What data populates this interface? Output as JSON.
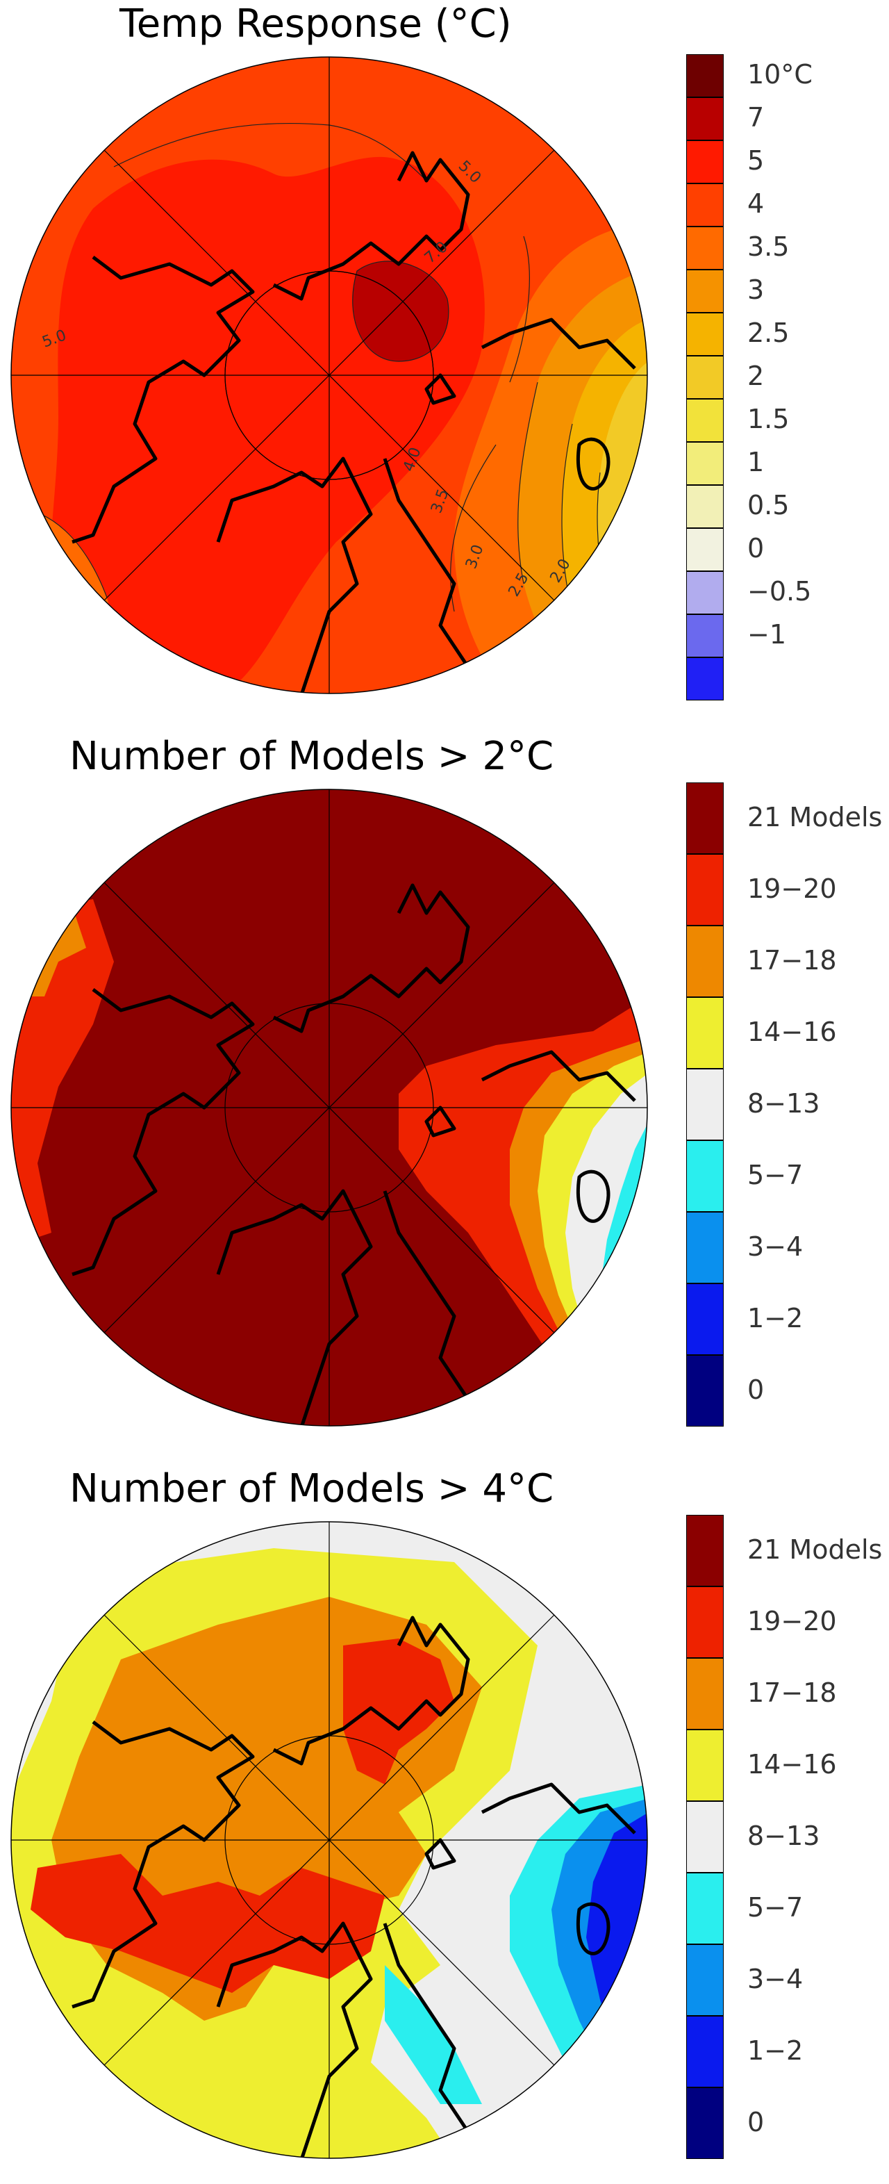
{
  "panels": [
    {
      "id": "temp",
      "title": "Temp Response (°C)",
      "contour_labels": [
        "5.0",
        "7.0",
        "5.0",
        "4.0",
        "3.5",
        "3.0",
        "2.5",
        "2.0"
      ],
      "legend": [
        {
          "label": "10°C",
          "color": "#6e0000"
        },
        {
          "label": "7",
          "color": "#b80000"
        },
        {
          "label": "5",
          "color": "#ff1a00"
        },
        {
          "label": "4",
          "color": "#ff4000"
        },
        {
          "label": "3.5",
          "color": "#ff6a00"
        },
        {
          "label": "3",
          "color": "#f59200"
        },
        {
          "label": "2.5",
          "color": "#f5b300"
        },
        {
          "label": "2",
          "color": "#f2ca26"
        },
        {
          "label": "1.5",
          "color": "#f2e23a"
        },
        {
          "label": "1",
          "color": "#f2ed7a"
        },
        {
          "label": "0.5",
          "color": "#f2f0b6"
        },
        {
          "label": "0",
          "color": "#f2f2e0"
        },
        {
          "label": "−0.5",
          "color": "#b1acee"
        },
        {
          "label": "−1",
          "color": "#6b69ee"
        },
        {
          "label": "",
          "color": "#2020f5"
        }
      ]
    },
    {
      "id": "models2",
      "title": "Number of Models > 2°C",
      "legend": [
        {
          "label": "21 Models",
          "color": "#8b0000"
        },
        {
          "label": "19−20",
          "color": "#ee2200"
        },
        {
          "label": "17−18",
          "color": "#ee8800"
        },
        {
          "label": "14−16",
          "color": "#eeee30"
        },
        {
          "label": "8−13",
          "color": "#eeeeee"
        },
        {
          "label": "5−7",
          "color": "#2aeeee"
        },
        {
          "label": "3−4",
          "color": "#0a90ee"
        },
        {
          "label": "1−2",
          "color": "#0a1aee"
        },
        {
          "label": "0",
          "color": "#000080"
        }
      ]
    },
    {
      "id": "models4",
      "title": "Number of Models > 4°C",
      "legend": [
        {
          "label": "21 Models",
          "color": "#8b0000"
        },
        {
          "label": "19−20",
          "color": "#ee2200"
        },
        {
          "label": "17−18",
          "color": "#ee8800"
        },
        {
          "label": "14−16",
          "color": "#eeee30"
        },
        {
          "label": "8−13",
          "color": "#eeeeee"
        },
        {
          "label": "5−7",
          "color": "#2aeeee"
        },
        {
          "label": "3−4",
          "color": "#0a90ee"
        },
        {
          "label": "1−2",
          "color": "#0a1aee"
        },
        {
          "label": "0",
          "color": "#000080"
        }
      ]
    }
  ]
}
